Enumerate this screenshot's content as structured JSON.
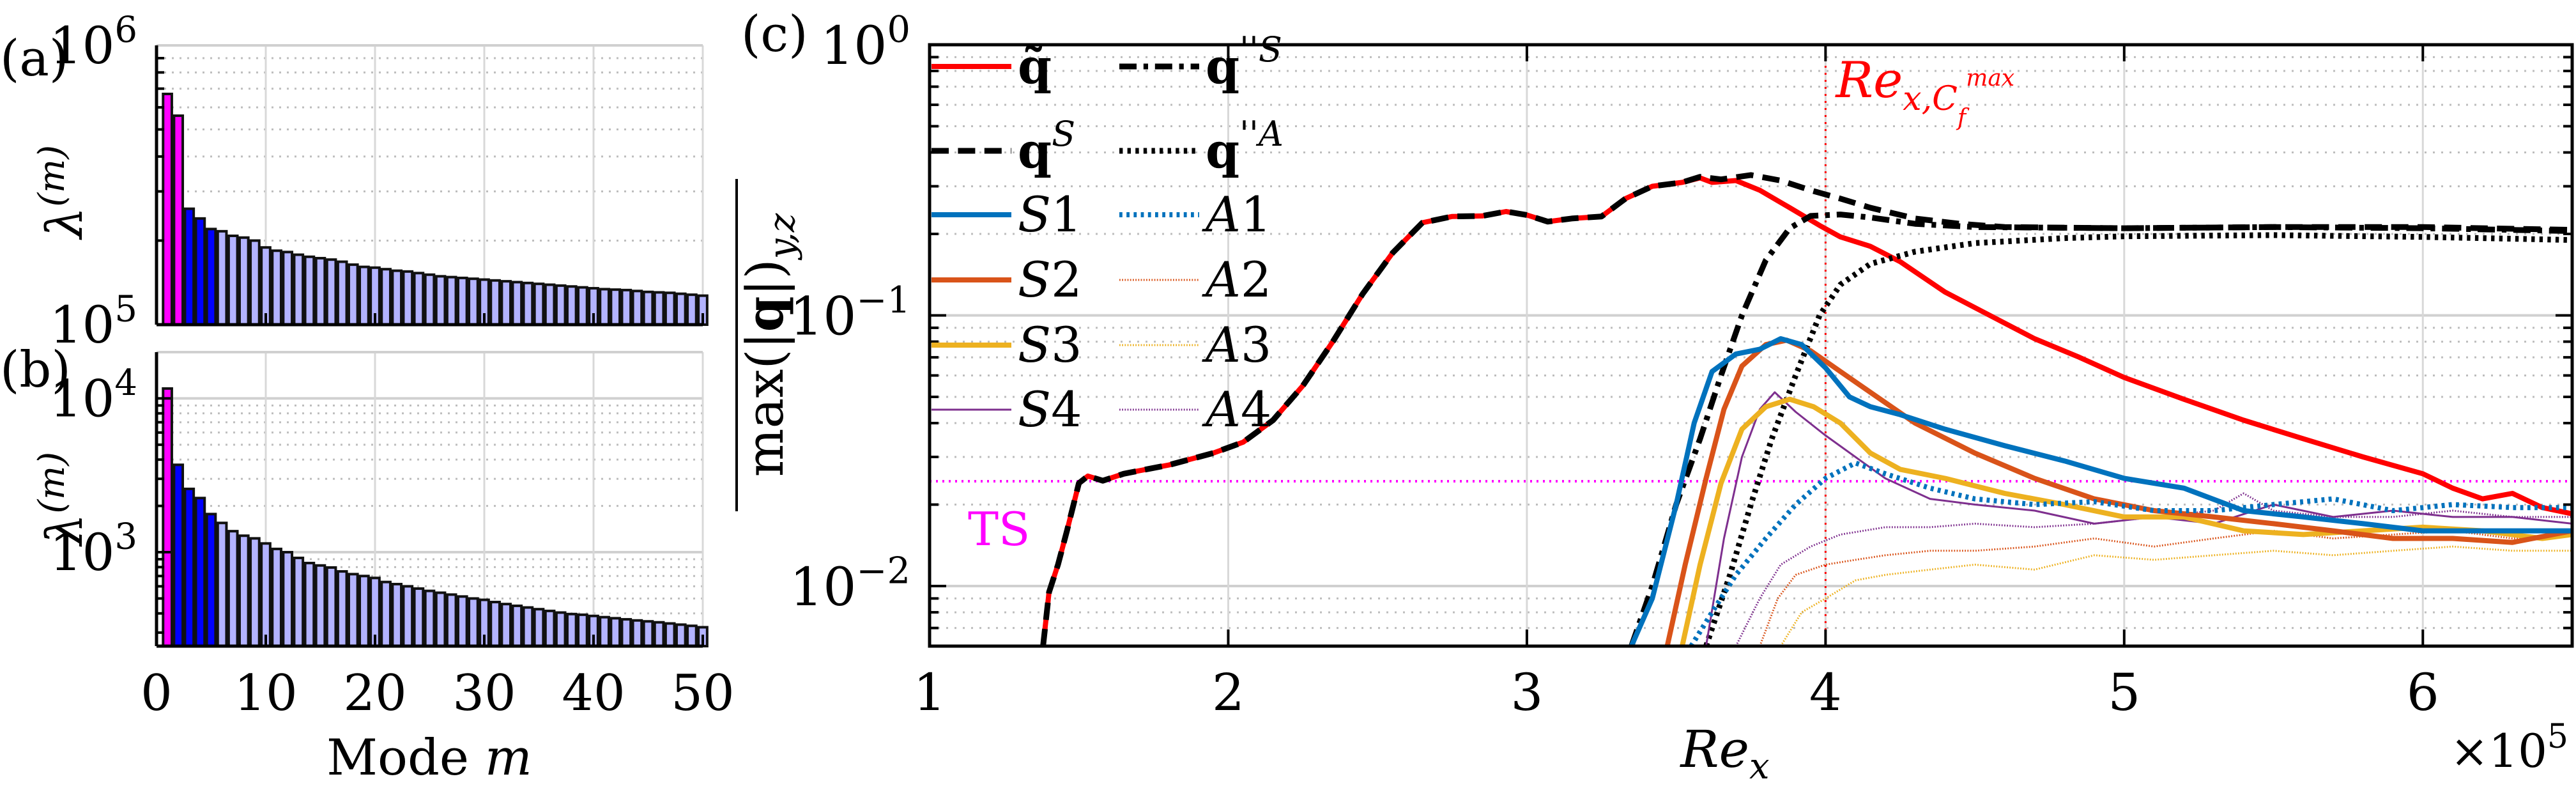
{
  "chart_data": [
    {
      "id": "a",
      "panel_label": "(a)",
      "type": "bar",
      "yscale": "log",
      "ylabel": "λ(m)",
      "ylabel_base": "λ",
      "ylabel_sup": "(m)",
      "xlabel": "",
      "ylim": [
        100000,
        1000000
      ],
      "xlim": [
        0,
        50
      ],
      "yticks": [
        {
          "value": 100000,
          "base": "10",
          "exp": "5"
        },
        {
          "value": 1000000,
          "base": "10",
          "exp": "6"
        }
      ],
      "xticks": [
        0,
        10,
        20,
        30,
        40,
        50
      ],
      "show_xticklabels": false,
      "grid": true,
      "bar_colors": {
        "1-2": "#ff00ff",
        "3-5": "#0000ff",
        "6-50": "#b3b3ff"
      },
      "categories": [
        1,
        2,
        3,
        4,
        5,
        6,
        7,
        8,
        9,
        10,
        11,
        12,
        13,
        14,
        15,
        16,
        17,
        18,
        19,
        20,
        21,
        22,
        23,
        24,
        25,
        26,
        27,
        28,
        29,
        30,
        31,
        32,
        33,
        34,
        35,
        36,
        37,
        38,
        39,
        40,
        41,
        42,
        43,
        44,
        45,
        46,
        47,
        48,
        49,
        50
      ],
      "values": [
        670000,
        560000,
        260000,
        240000,
        220000,
        216000,
        208000,
        205000,
        200000,
        189000,
        184000,
        182000,
        178000,
        175000,
        173000,
        171000,
        168000,
        164000,
        161000,
        160000,
        158000,
        156000,
        155000,
        153000,
        151000,
        149000,
        148000,
        147000,
        146000,
        145000,
        144000,
        143000,
        142000,
        141000,
        140000,
        139000,
        138000,
        137000,
        136000,
        135000,
        134000,
        133500,
        133000,
        132000,
        131000,
        130500,
        130000,
        129000,
        128000,
        127000
      ]
    },
    {
      "id": "b",
      "panel_label": "(b)",
      "type": "bar",
      "yscale": "log",
      "ylabel": "λ(m)",
      "ylabel_base": "λ",
      "ylabel_sup": "(m)",
      "xlabel": "Mode m",
      "xlabel_text": "Mode ",
      "xlabel_var": "m",
      "ylim": [
        245,
        20000
      ],
      "xlim": [
        0,
        50
      ],
      "yticks": [
        {
          "value": 1000,
          "base": "10",
          "exp": "3"
        },
        {
          "value": 10000,
          "base": "10",
          "exp": "4"
        }
      ],
      "xticks": [
        0,
        10,
        20,
        30,
        40,
        50
      ],
      "show_xticklabels": true,
      "grid": true,
      "bar_colors": {
        "1": "#ff00ff",
        "2-5": "#0000ff",
        "6-50": "#b3b3ff"
      },
      "categories": [
        1,
        2,
        3,
        4,
        5,
        6,
        7,
        8,
        9,
        10,
        11,
        12,
        13,
        14,
        15,
        16,
        17,
        18,
        19,
        20,
        21,
        22,
        23,
        24,
        25,
        26,
        27,
        28,
        29,
        30,
        31,
        32,
        33,
        34,
        35,
        36,
        37,
        38,
        39,
        40,
        41,
        42,
        43,
        44,
        45,
        46,
        47,
        48,
        49,
        50
      ],
      "values": [
        11600,
        3700,
        2580,
        2250,
        1770,
        1550,
        1370,
        1280,
        1230,
        1140,
        1050,
        1000,
        918,
        850,
        820,
        795,
        750,
        720,
        700,
        680,
        640,
        620,
        600,
        580,
        560,
        545,
        530,
        515,
        500,
        490,
        474,
        460,
        448,
        437,
        426,
        415,
        405,
        396,
        392,
        385,
        378,
        372,
        366,
        360,
        355,
        350,
        344,
        338,
        332,
        325
      ]
    },
    {
      "id": "c",
      "panel_label": "(c)",
      "type": "line",
      "yscale": "log",
      "xlabel": "Re_x",
      "xlabel_base": "Re",
      "xlabel_sub": "x",
      "x_multiplier": "×10",
      "x_multiplier_exp": "5",
      "ylabel": "max(|q|)_{y,z} (overlined)",
      "ylabel_main": "max(|",
      "ylabel_bold": "q",
      "ylabel_close": "|)",
      "ylabel_sub": "y,z",
      "xlim": [
        1,
        6.5
      ],
      "ylim": [
        0.006,
        1
      ],
      "xticks": [
        1,
        2,
        3,
        4,
        5,
        6
      ],
      "yticks": [
        {
          "value": 1,
          "base": "10",
          "exp": "0"
        },
        {
          "value": 0.1,
          "base": "10",
          "exp": "−1"
        },
        {
          "value": 0.01,
          "base": "10",
          "exp": "−2"
        }
      ],
      "grid": true,
      "legend_position": "upper left (inside), 2 columns",
      "annotations": [
        {
          "type": "vline",
          "x": 4.0,
          "color": "#ff0000",
          "style": "dotted",
          "label_base": "Re",
          "label_sub": "x,C",
          "label_subsub": "f",
          "label_sup": "max"
        },
        {
          "type": "hline",
          "y": 0.0244,
          "color": "#ff00ff",
          "style": "dotted",
          "label": "TS"
        }
      ],
      "series": [
        {
          "name": "q̃",
          "legend": "q̃",
          "color": "#ff0000",
          "style": "solid",
          "width": 8,
          "x": [
            1.38,
            1.4,
            1.43,
            1.46,
            1.5,
            1.53,
            1.58,
            1.65,
            1.8,
            1.95,
            2.05,
            2.15,
            2.25,
            2.35,
            2.45,
            2.55,
            2.65,
            2.75,
            2.85,
            2.93,
            3.0,
            3.07,
            3.15,
            3.25,
            3.33,
            3.42,
            3.52,
            3.58,
            3.62,
            3.7,
            3.78,
            3.88,
            3.98,
            4.05,
            4.15,
            4.25,
            4.4,
            4.55,
            4.7,
            4.85,
            5.0,
            5.2,
            5.4,
            5.6,
            5.8,
            6.0,
            6.1,
            6.2,
            6.3,
            6.4,
            6.5
          ],
          "y": [
            0.006,
            0.0095,
            0.012,
            0.016,
            0.024,
            0.0255,
            0.0245,
            0.026,
            0.028,
            0.031,
            0.034,
            0.041,
            0.055,
            0.08,
            0.12,
            0.17,
            0.22,
            0.232,
            0.233,
            0.242,
            0.235,
            0.222,
            0.228,
            0.232,
            0.27,
            0.3,
            0.31,
            0.322,
            0.31,
            0.315,
            0.29,
            0.25,
            0.215,
            0.195,
            0.18,
            0.158,
            0.122,
            0.1,
            0.082,
            0.07,
            0.059,
            0.049,
            0.041,
            0.035,
            0.03,
            0.026,
            0.023,
            0.021,
            0.022,
            0.0195,
            0.0185
          ]
        },
        {
          "name": "qS",
          "legend": "q^S",
          "color": "#000000",
          "style": "dashed",
          "width": 9,
          "x": [
            1.38,
            1.4,
            1.43,
            1.46,
            1.5,
            1.53,
            1.58,
            1.65,
            1.8,
            1.95,
            2.05,
            2.15,
            2.25,
            2.35,
            2.45,
            2.55,
            2.65,
            2.75,
            2.85,
            2.93,
            3.0,
            3.07,
            3.15,
            3.25,
            3.33,
            3.42,
            3.52,
            3.58,
            3.65,
            3.75,
            3.85,
            3.95,
            4.05,
            4.15,
            4.3,
            4.45,
            4.6,
            5.0,
            5.5,
            6.0,
            6.5
          ],
          "y": [
            0.006,
            0.0095,
            0.012,
            0.016,
            0.024,
            0.0255,
            0.0245,
            0.026,
            0.028,
            0.031,
            0.034,
            0.041,
            0.055,
            0.08,
            0.12,
            0.17,
            0.22,
            0.232,
            0.233,
            0.242,
            0.235,
            0.222,
            0.228,
            0.232,
            0.27,
            0.3,
            0.31,
            0.325,
            0.318,
            0.33,
            0.315,
            0.29,
            0.27,
            0.25,
            0.228,
            0.218,
            0.212,
            0.21,
            0.212,
            0.212,
            0.207
          ]
        },
        {
          "name": "q''S",
          "legend": "q''^S",
          "color": "#000000",
          "style": "dashdot",
          "width": 9,
          "x": [
            3.35,
            3.42,
            3.5,
            3.58,
            3.65,
            3.72,
            3.8,
            3.88,
            3.95,
            4.05,
            4.15,
            4.3,
            4.5,
            5.0,
            5.5,
            6.0,
            6.5
          ],
          "y": [
            0.006,
            0.01,
            0.02,
            0.035,
            0.06,
            0.1,
            0.16,
            0.21,
            0.233,
            0.236,
            0.23,
            0.218,
            0.212,
            0.21,
            0.212,
            0.21,
            0.205
          ]
        },
        {
          "name": "q''A",
          "legend": "q''^A",
          "color": "#000000",
          "style": "dotted",
          "width": 9,
          "x": [
            3.6,
            3.68,
            3.75,
            3.82,
            3.9,
            3.98,
            4.05,
            4.15,
            4.3,
            4.5,
            4.8,
            5.0,
            5.5,
            6.0,
            6.5
          ],
          "y": [
            0.006,
            0.011,
            0.02,
            0.035,
            0.06,
            0.1,
            0.13,
            0.155,
            0.172,
            0.185,
            0.193,
            0.196,
            0.198,
            0.195,
            0.19
          ]
        },
        {
          "name": "S1",
          "legend": "S1",
          "color": "#0072bd",
          "style": "solid",
          "width": 8,
          "x": [
            3.35,
            3.42,
            3.5,
            3.56,
            3.62,
            3.7,
            3.78,
            3.85,
            3.92,
            4.0,
            4.08,
            4.15,
            4.25,
            4.4,
            4.6,
            4.8,
            5.0,
            5.2,
            5.4,
            5.6,
            5.8,
            6.0,
            6.2,
            6.4,
            6.5
          ],
          "y": [
            0.006,
            0.009,
            0.02,
            0.04,
            0.062,
            0.072,
            0.075,
            0.082,
            0.078,
            0.064,
            0.05,
            0.046,
            0.043,
            0.038,
            0.033,
            0.029,
            0.025,
            0.023,
            0.019,
            0.018,
            0.017,
            0.016,
            0.016,
            0.016,
            0.016
          ]
        },
        {
          "name": "S2",
          "legend": "S2",
          "color": "#d95319",
          "style": "solid",
          "width": 8,
          "x": [
            3.47,
            3.53,
            3.6,
            3.66,
            3.72,
            3.8,
            3.87,
            3.95,
            4.05,
            4.15,
            4.3,
            4.5,
            4.7,
            4.9,
            5.1,
            5.3,
            5.5,
            5.7,
            5.9,
            6.1,
            6.3,
            6.5
          ],
          "y": [
            0.006,
            0.012,
            0.025,
            0.045,
            0.065,
            0.078,
            0.081,
            0.074,
            0.062,
            0.052,
            0.04,
            0.031,
            0.025,
            0.021,
            0.019,
            0.018,
            0.017,
            0.016,
            0.015,
            0.015,
            0.0145,
            0.016
          ]
        },
        {
          "name": "S3",
          "legend": "S3",
          "color": "#edb120",
          "style": "solid",
          "width": 8,
          "x": [
            3.52,
            3.58,
            3.65,
            3.72,
            3.8,
            3.88,
            3.96,
            4.05,
            4.15,
            4.25,
            4.4,
            4.6,
            4.8,
            5.0,
            5.2,
            5.4,
            5.6,
            5.8,
            6.0,
            6.2,
            6.4,
            6.5
          ],
          "y": [
            0.006,
            0.012,
            0.024,
            0.038,
            0.046,
            0.049,
            0.046,
            0.04,
            0.031,
            0.027,
            0.025,
            0.022,
            0.02,
            0.018,
            0.018,
            0.016,
            0.0155,
            0.016,
            0.0165,
            0.016,
            0.015,
            0.0155
          ]
        },
        {
          "name": "S4",
          "legend": "S4",
          "color": "#7e2f8e",
          "style": "solid",
          "width": 3,
          "x": [
            3.6,
            3.66,
            3.72,
            3.78,
            3.83,
            3.9,
            4.0,
            4.1,
            4.2,
            4.35,
            4.5,
            4.7,
            4.9,
            5.1,
            5.3,
            5.5,
            5.7,
            5.9,
            6.1,
            6.3,
            6.5
          ],
          "y": [
            0.006,
            0.015,
            0.03,
            0.045,
            0.052,
            0.044,
            0.036,
            0.03,
            0.025,
            0.021,
            0.02,
            0.019,
            0.017,
            0.018,
            0.017,
            0.02,
            0.018,
            0.019,
            0.018,
            0.018,
            0.017
          ]
        },
        {
          "name": "A1",
          "legend": "A1",
          "color": "#0072bd",
          "style": "dotted",
          "width": 8,
          "x": [
            3.55,
            3.62,
            3.7,
            3.8,
            3.9,
            4.0,
            4.1,
            4.2,
            4.35,
            4.5,
            4.7,
            4.9,
            5.1,
            5.3,
            5.5,
            5.7,
            5.9,
            6.1,
            6.3,
            6.5
          ],
          "y": [
            0.006,
            0.008,
            0.011,
            0.015,
            0.02,
            0.025,
            0.0285,
            0.026,
            0.023,
            0.021,
            0.02,
            0.0205,
            0.019,
            0.019,
            0.02,
            0.021,
            0.019,
            0.02,
            0.0195,
            0.0195
          ]
        },
        {
          "name": "A2",
          "legend": "A2",
          "color": "#d95319",
          "style": "dotted",
          "width": 3,
          "x": [
            3.78,
            3.84,
            3.9,
            4.0,
            4.1,
            4.2,
            4.35,
            4.5,
            4.7,
            4.9,
            5.1,
            5.3,
            5.5,
            5.7,
            5.9,
            6.1,
            6.3,
            6.5
          ],
          "y": [
            0.006,
            0.009,
            0.011,
            0.012,
            0.0125,
            0.013,
            0.0135,
            0.0135,
            0.014,
            0.015,
            0.014,
            0.015,
            0.016,
            0.015,
            0.0155,
            0.016,
            0.015,
            0.0155
          ]
        },
        {
          "name": "A3",
          "legend": "A3",
          "color": "#edb120",
          "style": "dotted",
          "width": 3,
          "x": [
            3.85,
            3.92,
            4.0,
            4.1,
            4.2,
            4.35,
            4.5,
            4.7,
            4.9,
            5.1,
            5.3,
            5.5,
            5.7,
            5.9,
            6.1,
            6.3,
            6.5
          ],
          "y": [
            0.006,
            0.008,
            0.009,
            0.0105,
            0.011,
            0.0115,
            0.012,
            0.0115,
            0.013,
            0.0125,
            0.013,
            0.0135,
            0.013,
            0.0135,
            0.014,
            0.0135,
            0.0135
          ]
        },
        {
          "name": "A4",
          "legend": "A4",
          "color": "#7e2f8e",
          "style": "dotted",
          "width": 3,
          "x": [
            3.7,
            3.78,
            3.85,
            3.95,
            4.05,
            4.2,
            4.35,
            4.5,
            4.7,
            4.9,
            5.1,
            5.3,
            5.4,
            5.5,
            5.7,
            5.9,
            6.1,
            6.3,
            6.5
          ],
          "y": [
            0.006,
            0.009,
            0.012,
            0.014,
            0.0155,
            0.0165,
            0.0165,
            0.017,
            0.0165,
            0.017,
            0.018,
            0.019,
            0.022,
            0.019,
            0.018,
            0.018,
            0.019,
            0.018,
            0.018
          ]
        }
      ]
    }
  ],
  "legend": {
    "left_column": [
      "q̃",
      "q^S",
      "S1",
      "S2",
      "S3",
      "S4"
    ],
    "right_column": [
      "q''^S",
      "q''^A",
      "A1",
      "A2",
      "A3",
      "A4"
    ]
  }
}
